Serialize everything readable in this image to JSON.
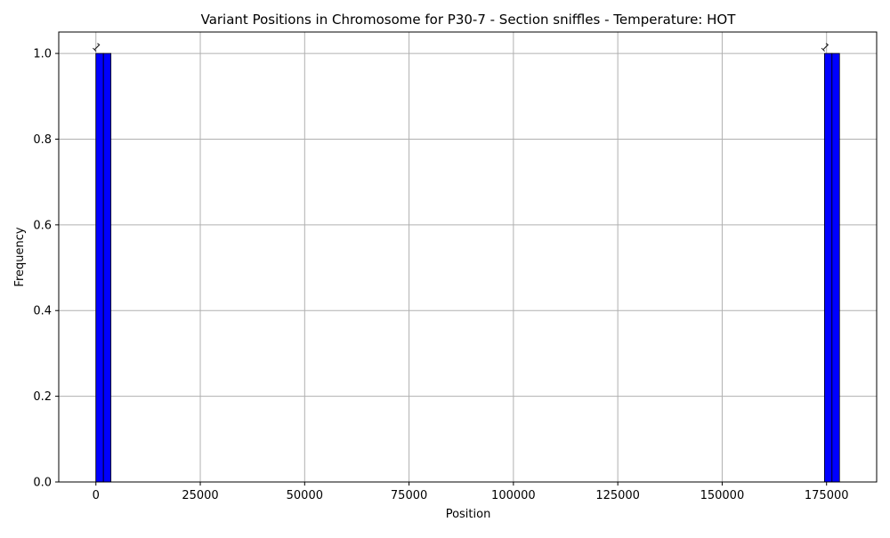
{
  "chart_data": {
    "type": "bar",
    "title": "Variant Positions in Chromosome for P30-7 - Section sniffles - Temperature: HOT",
    "xlabel": "Position",
    "ylabel": "Frequency",
    "xlim": [
      -8900,
      187000
    ],
    "ylim": [
      0,
      1.05
    ],
    "grid": true,
    "x_ticks": [
      0,
      25000,
      50000,
      75000,
      100000,
      125000,
      150000,
      175000
    ],
    "x_tick_labels": [
      "0",
      "25000",
      "50000",
      "75000",
      "100000",
      "125000",
      "150000",
      "175000"
    ],
    "y_ticks": [
      0,
      0.2,
      0.4,
      0.6,
      0.8,
      1.0
    ],
    "y_tick_labels": [
      "0.0",
      "0.2",
      "0.4",
      "0.6",
      "0.8",
      "1.0"
    ],
    "bars": [
      {
        "x0": 0,
        "x1": 1800,
        "value": 1,
        "label": "1",
        "color": "#0000ff"
      },
      {
        "x0": 1800,
        "x1": 3600,
        "value": 1,
        "label": "1",
        "color": "#0000ff"
      },
      {
        "x0": 174500,
        "x1": 176300,
        "value": 1,
        "label": "1",
        "color": "#0000ff"
      },
      {
        "x0": 176300,
        "x1": 178100,
        "value": 1,
        "label": "1",
        "color": "#0000ff"
      }
    ],
    "baseline_range": [
      0,
      178100
    ],
    "bar_edge_color": "#000000",
    "grid_color": "#b0b0b0"
  }
}
